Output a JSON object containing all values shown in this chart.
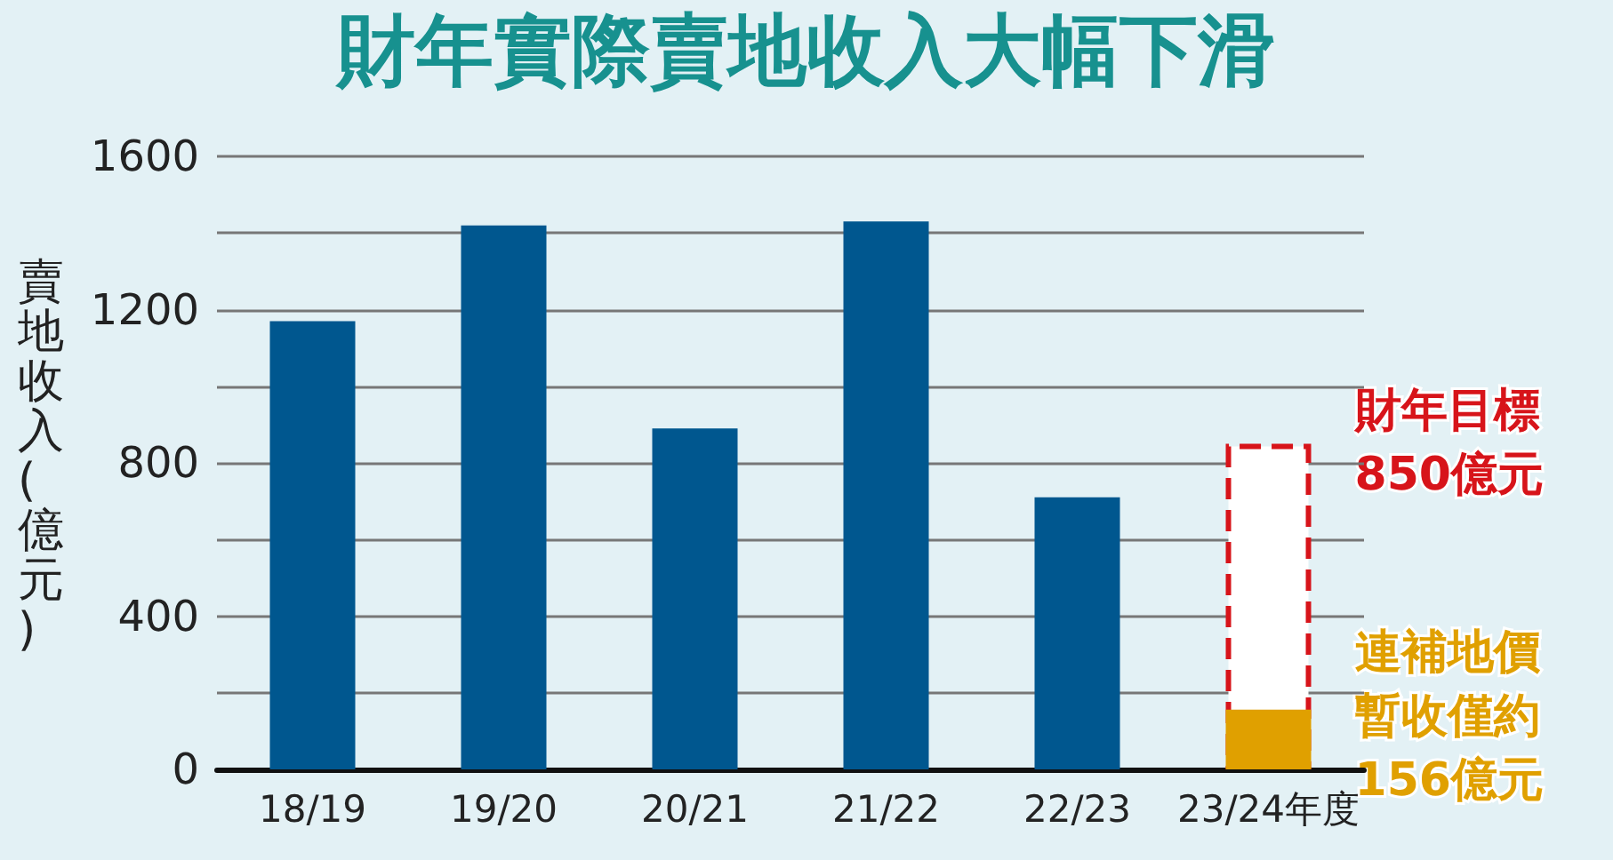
{
  "chart_data": {
    "type": "bar",
    "title": "財年實際賣地收入大幅下滑",
    "ylabel": "賣地收入(億元)",
    "categories": [
      "18/19",
      "19/20",
      "20/21",
      "21/22",
      "22/23",
      "23/24年度"
    ],
    "series": [
      {
        "values": [
          null,
          null,
          null,
          null,
          null,
          850
        ],
        "color": "#d7141a",
        "line_style": "dashed"
      },
      {
        "values": [
          1170,
          1420,
          890,
          1430,
          710,
          156
        ],
        "colors": [
          "#00578f",
          "#00578f",
          "#00578f",
          "#00578f",
          "#00578f",
          "#e0a000"
        ]
      }
    ],
    "ylim": [
      0,
      1600
    ],
    "yticks": [
      0,
      {
        "value": 200,
        "label": null
      },
      400,
      {
        "value": 600,
        "label": null
      },
      800,
      {
        "value": 1000,
        "label": null
      },
      1200,
      {
        "value": 1400,
        "label": null
      },
      1600
    ],
    "grid": "y",
    "annotations": [
      {
        "text": "財年目標850億元",
        "x": "23/24年度",
        "y": 850
      },
      {
        "text": "連補地價暫收僅約156億元",
        "x": "23/24年度",
        "y": 156
      }
    ]
  }
}
